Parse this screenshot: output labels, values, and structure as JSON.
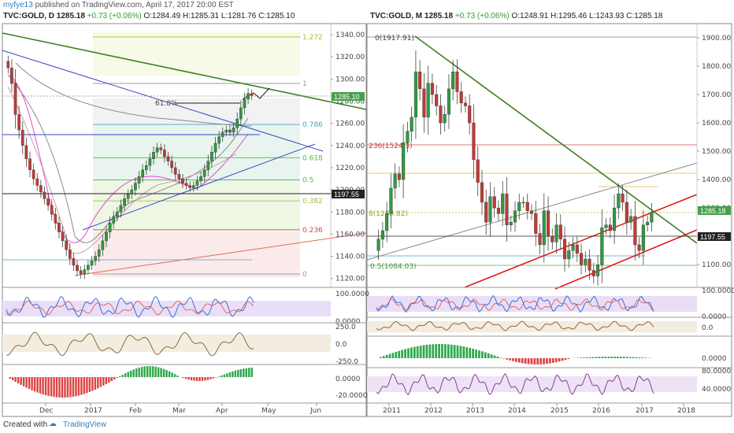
{
  "publisher": {
    "user": "myfye13",
    "text": "published on TradingView.com, April 17, 2017 20:00 EST"
  },
  "left_header": {
    "symbol": "TVC:GOLD, D",
    "last": "1285.18",
    "change": "+0.73 (+0.06%)",
    "o": "O:1284.49",
    "h": "H:1285.31",
    "l": "L:1281.76",
    "c": "C:1285.10"
  },
  "right_header": {
    "symbol": "TVC:GOLD, M",
    "last": "1285.18",
    "change": "+0.73 (+0.06%)",
    "o": "O:1248.91",
    "h": "H:1295.46",
    "l": "L:1243.93",
    "c": "C:1285.18"
  },
  "footer": {
    "created": "Created with",
    "brand": "TradingView"
  },
  "colors": {
    "up": "#2e9b3f",
    "down": "#c23a36",
    "trend_green": "#3d7e21",
    "blue_line": "#3b49c6",
    "red_line": "#e11c1c"
  },
  "chart_data": [
    {
      "type": "candlestick",
      "timeframe": "D",
      "x_ticks": [
        "Dec",
        "2017",
        "Feb",
        "Mar",
        "Apr",
        "May",
        "Jun"
      ],
      "y_ticks": [
        "1340.00",
        "1320.00",
        "1300.00",
        "1280.00",
        "1260.00",
        "1240.00",
        "1220.00",
        "1200.00",
        "1180.00",
        "1160.00",
        "1140.00",
        "1120.00"
      ],
      "ylim": [
        1112,
        1350
      ],
      "price_labels": [
        "1285.10",
        "1197.55"
      ],
      "fib_levels": [
        {
          "label": "1.272",
          "value": 1338
        },
        {
          "label": "1",
          "value": 1296
        },
        {
          "label": "0.786",
          "value": 1259
        },
        {
          "label": "0.618",
          "value": 1229
        },
        {
          "label": "0.5",
          "value": 1209
        },
        {
          "label": "0.382",
          "value": 1190
        },
        {
          "label": "0.236",
          "value": 1164
        },
        {
          "label": "0",
          "value": 1124
        }
      ],
      "annotation": "61.8%",
      "closes": [
        1310,
        1296,
        1268,
        1254,
        1240,
        1228,
        1218,
        1210,
        1204,
        1198,
        1192,
        1186,
        1178,
        1170,
        1162,
        1154,
        1146,
        1138,
        1132,
        1127,
        1124,
        1128,
        1132,
        1136,
        1140,
        1146,
        1154,
        1162,
        1170,
        1176,
        1180,
        1186,
        1192,
        1196,
        1200,
        1206,
        1212,
        1218,
        1222,
        1228,
        1234,
        1238,
        1236,
        1230,
        1226,
        1220,
        1214,
        1210,
        1206,
        1204,
        1202,
        1204,
        1208,
        1212,
        1218,
        1226,
        1234,
        1242,
        1248,
        1252,
        1254,
        1252,
        1256,
        1264,
        1274,
        1282,
        1287,
        1285
      ],
      "rsi_ticks": [
        "100.0000",
        "0.0000"
      ],
      "cci_ticks": [
        "250.0",
        "0.0",
        "-250.0"
      ],
      "macd_ticks": [
        "0.0000",
        "-20.0000"
      ]
    },
    {
      "type": "candlestick",
      "timeframe": "M",
      "x_ticks": [
        "2011",
        "2012",
        "2013",
        "2014",
        "2015",
        "2016",
        "2017",
        "2018"
      ],
      "y_ticks": [
        "1900.00",
        "1800.00",
        "1700.00",
        "1600.00",
        "1500.00",
        "1400.00",
        "1300.00",
        "1200.00",
        "1100.00"
      ],
      "ylim": [
        1020,
        1950
      ],
      "price_labels": [
        "1285.18",
        "1197.55"
      ],
      "fib_labels": [
        "0(1917.91)",
        "236(1524.3)",
        "8(1280.82)",
        "0.5(1084.03)"
      ],
      "closes": [
        1190,
        1220,
        1280,
        1370,
        1420,
        1400,
        1530,
        1570,
        1620,
        1780,
        1720,
        1620,
        1740,
        1700,
        1660,
        1600,
        1630,
        1720,
        1780,
        1710,
        1670,
        1660,
        1600,
        1470,
        1390,
        1320,
        1250,
        1340,
        1300,
        1280,
        1350,
        1240,
        1250,
        1290,
        1320,
        1320,
        1290,
        1280,
        1210,
        1170,
        1290,
        1200,
        1180,
        1240,
        1190,
        1120,
        1150,
        1170,
        1140,
        1100,
        1120,
        1080,
        1060,
        1100,
        1230,
        1240,
        1220,
        1300,
        1350,
        1320,
        1250,
        1270,
        1170,
        1150,
        1240,
        1250,
        1285
      ],
      "rsi_ticks": [
        "100.0000",
        "0.0000"
      ],
      "cci_ticks": [
        "0.0"
      ],
      "macd_ticks": [
        "0.0000"
      ],
      "osc_ticks": [
        "80.0000",
        "40.0000"
      ]
    }
  ]
}
